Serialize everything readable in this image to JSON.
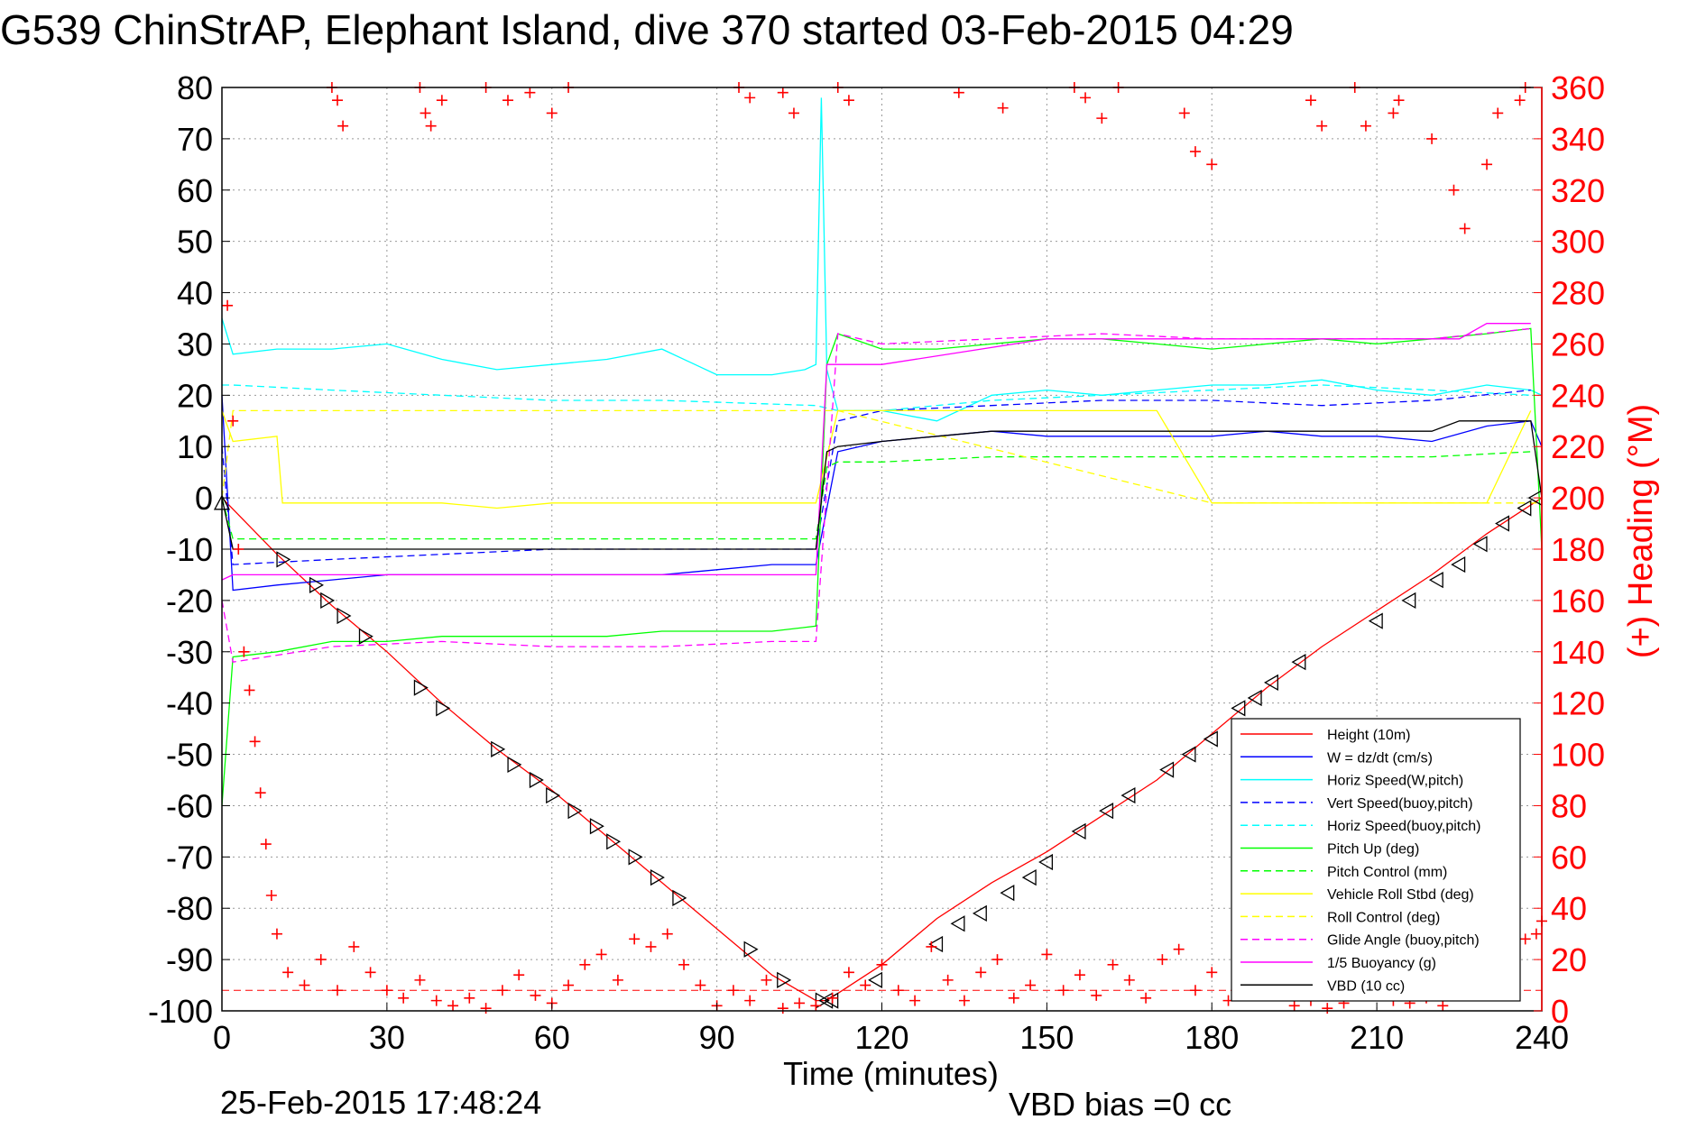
{
  "chart_data": {
    "type": "line",
    "title": "G539 ChinStrAP, Elephant Island, dive 370 started 03-Feb-2015 04:29",
    "xlabel": "Time (minutes)",
    "ylabel_right": "(+) Heading (°M)",
    "xlim": [
      0,
      240
    ],
    "ylim": [
      -100,
      80
    ],
    "y2lim": [
      0,
      360
    ],
    "x_ticks": [
      "0",
      "30",
      "60",
      "90",
      "120",
      "150",
      "180",
      "210",
      "240"
    ],
    "y_ticks": [
      "80",
      "70",
      "60",
      "50",
      "40",
      "30",
      "20",
      "10",
      "0",
      "-10",
      "-20",
      "-30",
      "-40",
      "-50",
      "-60",
      "-70",
      "-80",
      "-90",
      "-100"
    ],
    "y2_ticks": [
      "360",
      "340",
      "320",
      "300",
      "280",
      "260",
      "240",
      "220",
      "200",
      "180",
      "160",
      "140",
      "120",
      "100",
      "80",
      "60",
      "40",
      "20",
      "0"
    ],
    "grid": true,
    "legend_position": "bottom-right",
    "colors": {
      "height": "#ff0000",
      "w": "#0000ff",
      "horiz": "#00ffff",
      "pitch": "#00ff00",
      "roll": "#ffff00",
      "glide": "#ff00ff",
      "vbd": "#000000",
      "heading": "#ff0000"
    },
    "series": [
      {
        "name": "Height (10m)",
        "color": "#ff0000",
        "style": "solid",
        "x": [
          0,
          10,
          20,
          30,
          40,
          50,
          60,
          70,
          80,
          90,
          100,
          108,
          110,
          120,
          130,
          140,
          150,
          160,
          170,
          180,
          190,
          200,
          210,
          220,
          230,
          240
        ],
        "y": [
          0,
          -11,
          -21,
          -30,
          -40,
          -49,
          -57,
          -66,
          -75,
          -84,
          -93,
          -98,
          -98,
          -91,
          -82,
          -75,
          -69,
          -62,
          -55,
          -46,
          -37,
          -29,
          -22,
          -15,
          -7,
          0
        ]
      },
      {
        "name": "W = dz/dt (cm/s)",
        "color": "#0000ff",
        "style": "solid",
        "x": [
          0,
          2,
          10,
          20,
          30,
          40,
          50,
          60,
          70,
          80,
          90,
          100,
          108,
          112,
          120,
          130,
          140,
          150,
          160,
          170,
          180,
          190,
          200,
          210,
          220,
          230,
          238,
          240
        ],
        "y": [
          20,
          -18,
          -17,
          -16,
          -15,
          -15,
          -15,
          -15,
          -15,
          -15,
          -14,
          -13,
          -13,
          9,
          11,
          12,
          13,
          12,
          12,
          12,
          12,
          13,
          12,
          12,
          11,
          14,
          15,
          10
        ]
      },
      {
        "name": "Horiz Speed(W,pitch)",
        "color": "#00ffff",
        "style": "solid",
        "x": [
          0,
          2,
          10,
          20,
          30,
          40,
          50,
          60,
          70,
          80,
          90,
          100,
          106,
          108,
          109,
          110,
          112,
          120,
          130,
          140,
          150,
          160,
          170,
          180,
          190,
          200,
          210,
          220,
          230,
          238,
          240
        ],
        "y": [
          35,
          28,
          29,
          29,
          30,
          27,
          25,
          26,
          27,
          29,
          24,
          24,
          25,
          26,
          78,
          25,
          17,
          17,
          15,
          20,
          21,
          20,
          21,
          22,
          22,
          23,
          21,
          20,
          22,
          21,
          20
        ]
      },
      {
        "name": "Vert Speed(buoy,pitch)",
        "color": "#0000ff",
        "style": "dashed",
        "x": [
          0,
          2,
          20,
          40,
          60,
          80,
          100,
          108,
          112,
          120,
          140,
          160,
          180,
          200,
          220,
          238
        ],
        "y": [
          10,
          -13,
          -12,
          -11,
          -10,
          -10,
          -10,
          -10,
          15,
          17,
          18,
          19,
          19,
          18,
          19,
          21
        ]
      },
      {
        "name": "Horiz Speed(buoy,pitch)",
        "color": "#00ffff",
        "style": "dashed",
        "x": [
          0,
          2,
          20,
          40,
          60,
          80,
          108,
          112,
          120,
          140,
          160,
          180,
          200,
          220,
          238
        ],
        "y": [
          22,
          22,
          21,
          20,
          19,
          19,
          18,
          17,
          17,
          19,
          20,
          21,
          22,
          21,
          20
        ]
      },
      {
        "name": "Pitch Up (deg)",
        "color": "#00ff00",
        "style": "solid",
        "x": [
          0,
          2,
          10,
          20,
          30,
          40,
          50,
          60,
          70,
          80,
          90,
          100,
          108,
          110,
          112,
          120,
          130,
          140,
          150,
          160,
          170,
          180,
          190,
          200,
          210,
          220,
          230,
          238,
          240
        ],
        "y": [
          -60,
          -31,
          -30,
          -28,
          -28,
          -27,
          -27,
          -27,
          -27,
          -26,
          -26,
          -26,
          -25,
          26,
          32,
          29,
          29,
          30,
          31,
          31,
          30,
          29,
          30,
          31,
          30,
          31,
          32,
          33,
          -10
        ]
      },
      {
        "name": "Pitch Control (mm)",
        "color": "#00ff00",
        "style": "dashed",
        "x": [
          0,
          2,
          108,
          110,
          112,
          120,
          140,
          160,
          180,
          200,
          220,
          238
        ],
        "y": [
          0,
          -8,
          -8,
          6,
          7,
          7,
          8,
          8,
          8,
          8,
          8,
          9
        ]
      },
      {
        "name": "Vehicle Roll Stbd (deg)",
        "color": "#ffff00",
        "style": "solid",
        "x": [
          0,
          2,
          10,
          11,
          20,
          30,
          40,
          50,
          60,
          70,
          80,
          90,
          100,
          108,
          112,
          120,
          130,
          140,
          150,
          160,
          170,
          180,
          190,
          200,
          210,
          220,
          230,
          238
        ],
        "y": [
          17,
          11,
          12,
          -1,
          -1,
          -1,
          -1,
          -2,
          -1,
          -1,
          -1,
          -1,
          -1,
          -1,
          17,
          17,
          17,
          17,
          17,
          17,
          17,
          -1,
          -1,
          -1,
          -1,
          -1,
          -1,
          17
        ]
      },
      {
        "name": "Roll Control (deg)",
        "color": "#ffff00",
        "style": "dashed",
        "x": [
          0,
          2,
          108,
          112,
          180,
          200,
          240
        ],
        "y": [
          0,
          17,
          17,
          17,
          -1,
          -1,
          -1
        ]
      },
      {
        "name": "Glide Angle (buoy,pitch)",
        "color": "#ff00ff",
        "style": "dashed",
        "x": [
          0,
          2,
          20,
          40,
          60,
          80,
          100,
          108,
          112,
          120,
          140,
          160,
          180,
          200,
          220,
          238
        ],
        "y": [
          -20,
          -32,
          -29,
          -28,
          -29,
          -29,
          -28,
          -28,
          32,
          30,
          31,
          32,
          31,
          31,
          31,
          33
        ]
      },
      {
        "name": "1/5 Buoyancy (g)",
        "color": "#ff00ff",
        "style": "solid",
        "x": [
          0,
          2,
          20,
          40,
          60,
          80,
          108,
          110,
          112,
          120,
          150,
          180,
          210,
          225,
          230,
          238
        ],
        "y": [
          -16,
          -15,
          -15,
          -15,
          -15,
          -15,
          -15,
          26,
          26,
          26,
          31,
          31,
          31,
          31,
          34,
          34
        ]
      },
      {
        "name": "VBD (10 cc)",
        "color": "#000000",
        "style": "solid",
        "x": [
          0,
          2,
          108,
          110,
          112,
          120,
          130,
          140,
          150,
          180,
          220,
          225,
          238,
          240
        ],
        "y": [
          0,
          -10,
          -10,
          9,
          10,
          11,
          12,
          13,
          13,
          13,
          13,
          15,
          15,
          0
        ]
      }
    ],
    "markers": {
      "name": "Height (10m)",
      "x": [
        0,
        11,
        17,
        19,
        22,
        26,
        36,
        40,
        50,
        53,
        57,
        60,
        64,
        68,
        71,
        75,
        79,
        83,
        96,
        102,
        109,
        110,
        111,
        119,
        130,
        134,
        138,
        143,
        147,
        150,
        156,
        161,
        165,
        172,
        176,
        180,
        185,
        188,
        191,
        196,
        210,
        216,
        221,
        225,
        229,
        233,
        237,
        239
      ],
      "y": [
        -1,
        -12,
        -17,
        -20,
        -23,
        -27,
        -37,
        -41,
        -49,
        -52,
        -55,
        -58,
        -61,
        -64,
        -67,
        -70,
        -74,
        -78,
        -88,
        -94,
        -98,
        -98,
        -98,
        -94,
        -87,
        -83,
        -81,
        -77,
        -74,
        -71,
        -65,
        -61,
        -58,
        -53,
        -50,
        -47,
        -41,
        -39,
        -36,
        -32,
        -24,
        -20,
        -16,
        -13,
        -9,
        -5,
        -2,
        0
      ]
    },
    "heading": {
      "name": "(+) Heading (°M)",
      "x": [
        1,
        2,
        3,
        4,
        5,
        6,
        7,
        8,
        9,
        10,
        12,
        15,
        18,
        21,
        24,
        27,
        30,
        33,
        36,
        39,
        42,
        45,
        48,
        51,
        54,
        57,
        60,
        63,
        66,
        69,
        72,
        75,
        78,
        81,
        84,
        87,
        90,
        93,
        96,
        99,
        102,
        105,
        108,
        111,
        114,
        117,
        120,
        123,
        126,
        129,
        132,
        135,
        138,
        141,
        144,
        147,
        150,
        153,
        156,
        159,
        162,
        165,
        168,
        171,
        174,
        177,
        180,
        183,
        186,
        189,
        192,
        195,
        198,
        201,
        204,
        207,
        210,
        213,
        216,
        219,
        222,
        225,
        228,
        231,
        234,
        237,
        239,
        240,
        20,
        21,
        22,
        36,
        37,
        38,
        40,
        48,
        52,
        56,
        60,
        63,
        94,
        96,
        102,
        104,
        112,
        114,
        134,
        142,
        155,
        157,
        160,
        163,
        175,
        177,
        180,
        198,
        200,
        206,
        208,
        213,
        214,
        220,
        224,
        226,
        230,
        232,
        236,
        237
      ],
      "y": [
        275,
        230,
        180,
        140,
        125,
        105,
        85,
        65,
        45,
        30,
        15,
        10,
        20,
        8,
        25,
        15,
        8,
        5,
        12,
        4,
        2,
        5,
        1,
        8,
        14,
        6,
        3,
        10,
        18,
        22,
        12,
        28,
        25,
        30,
        18,
        10,
        2,
        8,
        4,
        12,
        1,
        3,
        2,
        5,
        15,
        10,
        18,
        8,
        4,
        25,
        12,
        4,
        15,
        20,
        5,
        10,
        22,
        8,
        14,
        6,
        18,
        12,
        5,
        20,
        24,
        8,
        15,
        4,
        10,
        6,
        16,
        2,
        4,
        1,
        3,
        10,
        6,
        4,
        3,
        5,
        2,
        18,
        8,
        22,
        14,
        28,
        30,
        35,
        360,
        355,
        345,
        360,
        350,
        345,
        355,
        360,
        355,
        358,
        350,
        360,
        360,
        356,
        358,
        350,
        360,
        355,
        358,
        352,
        360,
        356,
        348,
        360,
        350,
        335,
        330,
        355,
        345,
        360,
        345,
        350,
        355,
        340,
        320,
        305,
        330,
        350,
        355,
        360
      ]
    },
    "legend": [
      "Height (10m)",
      "W = dz/dt (cm/s)",
      "Horiz Speed(W,pitch)",
      "Vert Speed(buoy,pitch)",
      "Horiz Speed(buoy,pitch)",
      "Pitch Up (deg)",
      "Pitch Control (mm)",
      "Vehicle Roll Stbd (deg)",
      "Roll Control (deg)",
      "Glide Angle (buoy,pitch)",
      "1/5 Buoyancy (g)",
      "VBD (10 cc)"
    ]
  },
  "footer": {
    "timestamp": "25-Feb-2015 17:48:24",
    "vbd_bias": "VBD bias =0 cc"
  }
}
